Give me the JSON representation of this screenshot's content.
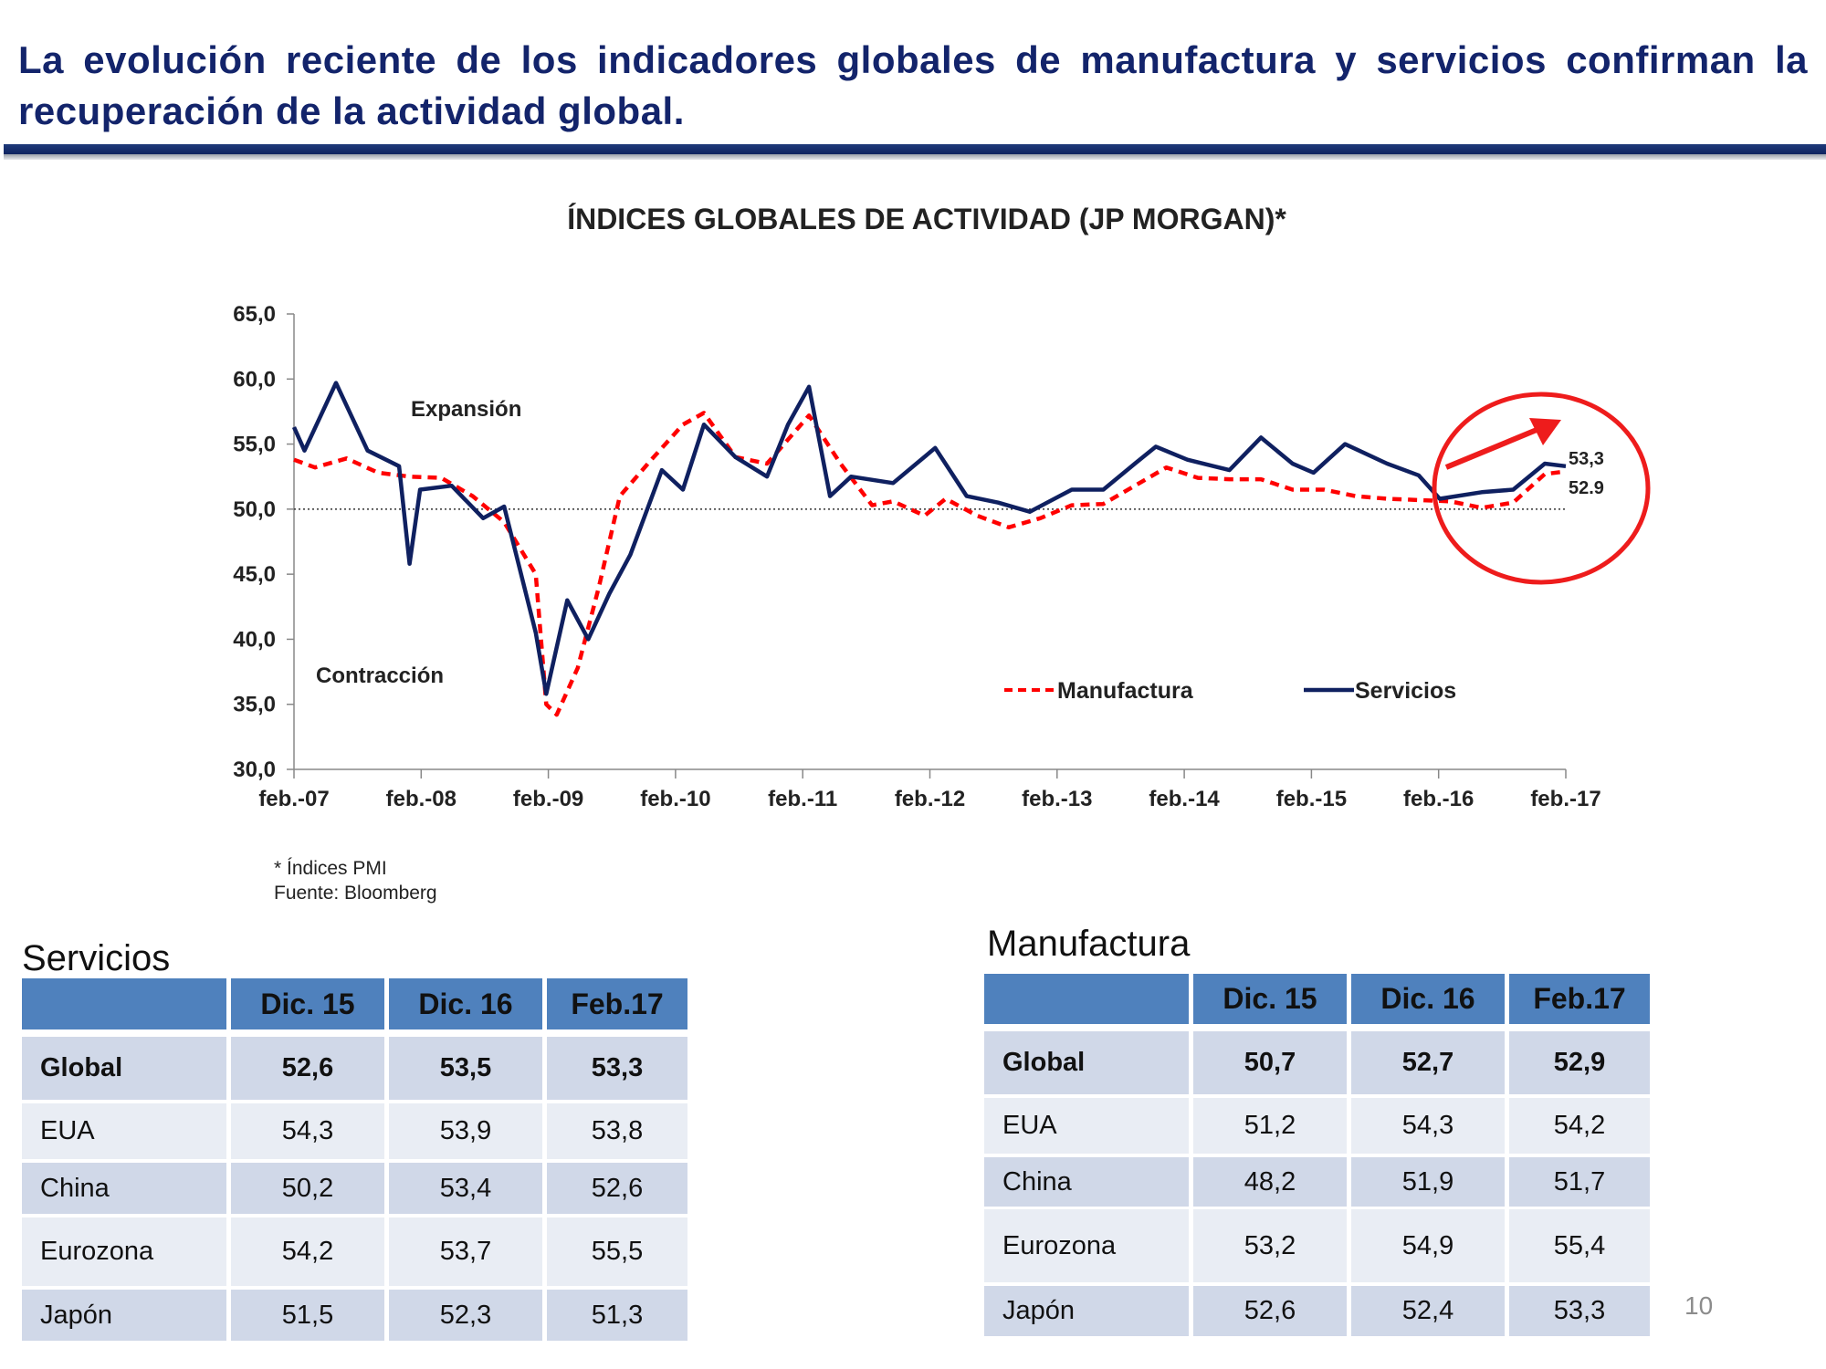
{
  "headline": "La evolución reciente de los indicadores globales de manufactura y servicios confirman la recuperación de la actividad global.",
  "chart_data": {
    "type": "line",
    "title": "ÍNDICES GLOBALES DE ACTIVIDAD (JP MORGAN)*",
    "ylim": [
      30,
      65
    ],
    "y_ticks": [
      "30,0",
      "35,0",
      "40,0",
      "45,0",
      "50,0",
      "55,0",
      "60,0",
      "65,0"
    ],
    "x_ticks": [
      "feb.-07",
      "feb.-08",
      "feb.-09",
      "feb.-10",
      "feb.-11",
      "feb.-12",
      "feb.-13",
      "feb.-14",
      "feb.-15",
      "feb.-16",
      "feb.-17"
    ],
    "x_start": "2007-01",
    "x_end": "2017-02",
    "threshold": 50,
    "annotations": {
      "expansion": "Expansión",
      "contraction": "Contracción"
    },
    "end_labels": {
      "servicios": "53,3",
      "manufactura": "52.9"
    },
    "series": [
      {
        "name": "Manufactura",
        "color": "#ff0000",
        "style": "dashed",
        "points": [
          [
            "2007-01",
            53.8
          ],
          [
            "2007-03",
            53.2
          ],
          [
            "2007-06",
            53.9
          ],
          [
            "2007-09",
            52.8
          ],
          [
            "2007-12",
            52.5
          ],
          [
            "2008-03",
            52.4
          ],
          [
            "2008-06",
            51.0
          ],
          [
            "2008-09",
            49.0
          ],
          [
            "2008-12",
            45.0
          ],
          [
            "2009-01",
            35.0
          ],
          [
            "2009-02",
            34.2
          ],
          [
            "2009-04",
            37.8
          ],
          [
            "2009-06",
            44.0
          ],
          [
            "2009-08",
            51.0
          ],
          [
            "2009-11",
            53.8
          ],
          [
            "2010-02",
            56.5
          ],
          [
            "2010-04",
            57.4
          ],
          [
            "2010-07",
            54.0
          ],
          [
            "2010-10",
            53.5
          ],
          [
            "2011-02",
            57.2
          ],
          [
            "2011-05",
            53.5
          ],
          [
            "2011-08",
            50.3
          ],
          [
            "2011-10",
            50.6
          ],
          [
            "2012-01",
            49.5
          ],
          [
            "2012-03",
            50.8
          ],
          [
            "2012-06",
            49.5
          ],
          [
            "2012-09",
            48.6
          ],
          [
            "2012-12",
            49.3
          ],
          [
            "2013-03",
            50.3
          ],
          [
            "2013-06",
            50.4
          ],
          [
            "2013-09",
            51.8
          ],
          [
            "2013-12",
            53.2
          ],
          [
            "2014-03",
            52.4
          ],
          [
            "2014-06",
            52.3
          ],
          [
            "2014-09",
            52.3
          ],
          [
            "2014-12",
            51.5
          ],
          [
            "2015-03",
            51.5
          ],
          [
            "2015-06",
            51.0
          ],
          [
            "2015-09",
            50.8
          ],
          [
            "2015-12",
            50.7
          ],
          [
            "2016-03",
            50.6
          ],
          [
            "2016-06",
            50.1
          ],
          [
            "2016-09",
            50.5
          ],
          [
            "2016-12",
            52.7
          ],
          [
            "2017-02",
            52.9
          ]
        ]
      },
      {
        "name": "Servicios",
        "color": "#0f2060",
        "style": "solid",
        "points": [
          [
            "2007-01",
            56.3
          ],
          [
            "2007-02",
            54.5
          ],
          [
            "2007-05",
            59.7
          ],
          [
            "2007-08",
            54.5
          ],
          [
            "2007-11",
            53.3
          ],
          [
            "2007-12",
            45.8
          ],
          [
            "2008-01",
            51.5
          ],
          [
            "2008-04",
            51.8
          ],
          [
            "2008-07",
            49.3
          ],
          [
            "2008-09",
            50.2
          ],
          [
            "2008-12",
            40.5
          ],
          [
            "2009-01",
            35.8
          ],
          [
            "2009-03",
            43.0
          ],
          [
            "2009-05",
            40.0
          ],
          [
            "2009-07",
            43.5
          ],
          [
            "2009-09",
            46.5
          ],
          [
            "2009-12",
            53.0
          ],
          [
            "2010-02",
            51.5
          ],
          [
            "2010-04",
            56.5
          ],
          [
            "2010-07",
            54.0
          ],
          [
            "2010-10",
            52.5
          ],
          [
            "2010-12",
            56.5
          ],
          [
            "2011-02",
            59.4
          ],
          [
            "2011-04",
            51.0
          ],
          [
            "2011-06",
            52.5
          ],
          [
            "2011-10",
            52.0
          ],
          [
            "2012-02",
            54.7
          ],
          [
            "2012-05",
            51.0
          ],
          [
            "2012-08",
            50.5
          ],
          [
            "2012-11",
            49.8
          ],
          [
            "2013-03",
            51.5
          ],
          [
            "2013-06",
            51.5
          ],
          [
            "2013-09",
            53.5
          ],
          [
            "2013-11",
            54.8
          ],
          [
            "2014-02",
            53.8
          ],
          [
            "2014-06",
            53.0
          ],
          [
            "2014-09",
            55.5
          ],
          [
            "2014-12",
            53.5
          ],
          [
            "2015-02",
            52.8
          ],
          [
            "2015-05",
            55.0
          ],
          [
            "2015-09",
            53.5
          ],
          [
            "2015-12",
            52.6
          ],
          [
            "2016-02",
            50.8
          ],
          [
            "2016-06",
            51.3
          ],
          [
            "2016-09",
            51.5
          ],
          [
            "2016-12",
            53.5
          ],
          [
            "2017-02",
            53.3
          ]
        ]
      }
    ],
    "notes": [
      "* Índices PMI",
      "Fuente: Bloomberg"
    ]
  },
  "tables": {
    "servicios": {
      "title": "Servicios",
      "headers": [
        "",
        "Dic. 15",
        "Dic. 16",
        "Feb.17"
      ],
      "rows": [
        [
          "Global",
          "52,6",
          "53,5",
          "53,3"
        ],
        [
          "EUA",
          "54,3",
          "53,9",
          "53,8"
        ],
        [
          "China",
          "50,2",
          "53,4",
          "52,6"
        ],
        [
          "Eurozona",
          "54,2",
          "53,7",
          "55,5"
        ],
        [
          "Japón",
          "51,5",
          "52,3",
          "51,3"
        ]
      ]
    },
    "manufactura": {
      "title": "Manufactura",
      "headers": [
        "",
        "Dic. 15",
        "Dic. 16",
        "Feb.17"
      ],
      "rows": [
        [
          "Global",
          "50,7",
          "52,7",
          "52,9"
        ],
        [
          "EUA",
          "51,2",
          "54,3",
          "54,2"
        ],
        [
          "China",
          "48,2",
          "51,9",
          "51,7"
        ],
        [
          "Eurozona",
          "53,2",
          "54,9",
          "55,4"
        ],
        [
          "Japón",
          "52,6",
          "52,4",
          "53,3"
        ]
      ]
    }
  },
  "page_number": "10"
}
